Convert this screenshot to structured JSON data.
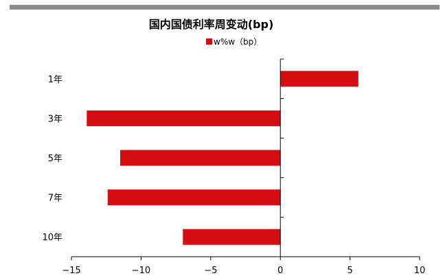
{
  "chart_data": {
    "type": "bar",
    "orientation": "horizontal",
    "title": "国内国债利率周变动(bp)",
    "categories": [
      "1年",
      "3年",
      "5年",
      "7年",
      "10年"
    ],
    "series": [
      {
        "name": "w%w（bp）",
        "values": [
          5.6,
          -13.9,
          -11.5,
          -12.4,
          -7.0
        ]
      }
    ],
    "xlim": [
      -15,
      10
    ],
    "xticks": [
      -15,
      -10,
      -5,
      0,
      5,
      10
    ],
    "xtick_labels": [
      "−15",
      "−10",
      "−5",
      "0",
      "5",
      "10"
    ],
    "grid": false,
    "legend_position": "top-center",
    "colors": {
      "bar": "#d40d12",
      "topbar": "#8c8c8c"
    }
  }
}
